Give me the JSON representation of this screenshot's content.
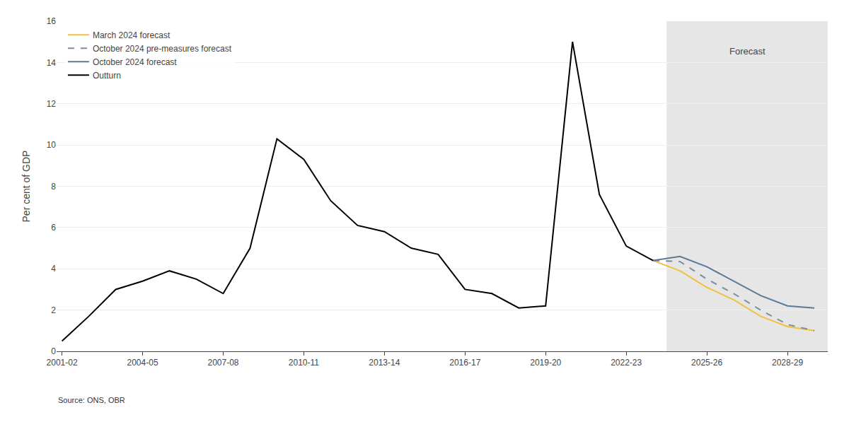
{
  "chart_data": {
    "type": "line",
    "y_label": "Per cent of GDP",
    "source": "Source: ONS, OBR",
    "shaded_region": {
      "start": 2023.5,
      "end": 2029.5,
      "label": "Forecast",
      "color": "#e6e6e6"
    },
    "series": [
      {
        "name": "March 2024 forecast",
        "color": "#f0c040",
        "line_style": "solid",
        "x": [
          2023,
          2024,
          2025,
          2026,
          2027,
          2028,
          2029
        ],
        "values": [
          4.4,
          3.9,
          3.1,
          2.5,
          1.7,
          1.2,
          1.0
        ]
      },
      {
        "name": "October 2024 pre-measures forecast",
        "color": "#7a8fa6",
        "line_style": "dashed",
        "x": [
          2023,
          2024,
          2025,
          2026,
          2027,
          2028,
          2029
        ],
        "values": [
          4.4,
          4.35,
          3.5,
          2.8,
          2.0,
          1.3,
          1.0
        ]
      },
      {
        "name": "October 2024 forecast",
        "color": "#5a7a99",
        "line_style": "solid",
        "x": [
          2023,
          2024,
          2025,
          2026,
          2027,
          2028,
          2029
        ],
        "values": [
          4.4,
          4.6,
          4.1,
          3.4,
          2.7,
          2.2,
          2.1
        ]
      },
      {
        "name": "Outturn",
        "color": "#000000",
        "line_style": "solid",
        "x": [
          2001,
          2002,
          2003,
          2004,
          2005,
          2006,
          2007,
          2008,
          2009,
          2010,
          2011,
          2012,
          2013,
          2014,
          2015,
          2016,
          2017,
          2018,
          2019,
          2020,
          2021,
          2022,
          2023
        ],
        "values": [
          0.5,
          1.7,
          3.0,
          3.4,
          3.9,
          3.5,
          2.8,
          5.0,
          10.3,
          9.3,
          7.3,
          6.1,
          5.8,
          5.0,
          4.7,
          3.0,
          2.8,
          2.1,
          2.2,
          15.0,
          7.6,
          5.1,
          4.4
        ]
      }
    ],
    "xlim": [
      2000.8,
      2029.5
    ],
    "xticks": [
      {
        "value": 2001,
        "label": "2001-02"
      },
      {
        "value": 2004,
        "label": "2004-05"
      },
      {
        "value": 2007,
        "label": "2007-08"
      },
      {
        "value": 2010,
        "label": "2010-11"
      },
      {
        "value": 2013,
        "label": "2013-14"
      },
      {
        "value": 2016,
        "label": "2016-17"
      },
      {
        "value": 2019,
        "label": "2019-20"
      },
      {
        "value": 2022,
        "label": "2022-23"
      },
      {
        "value": 2025,
        "label": "2025-26"
      },
      {
        "value": 2028,
        "label": "2028-29"
      }
    ],
    "ylim": [
      0,
      16
    ],
    "yticks": [
      0,
      2,
      4,
      6,
      8,
      10,
      12,
      14,
      16
    ],
    "grid": true,
    "legend": "upper left"
  }
}
